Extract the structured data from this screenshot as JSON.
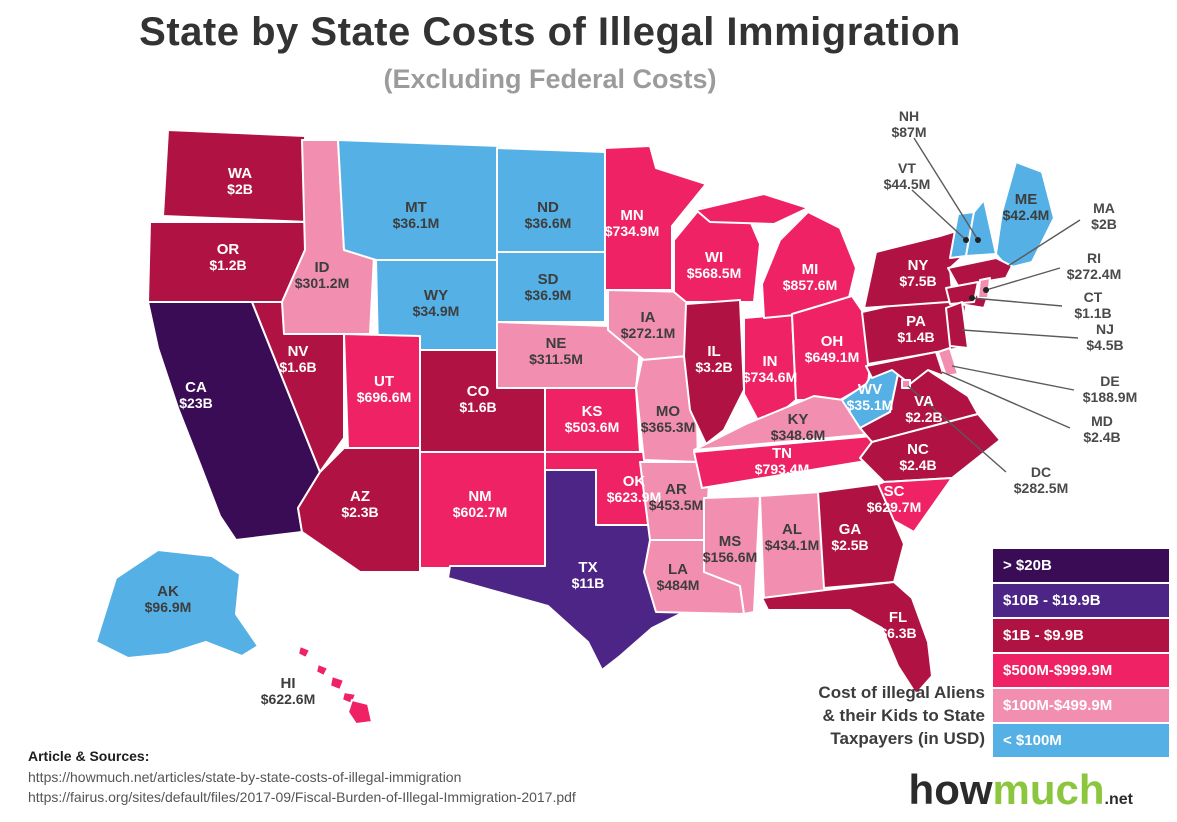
{
  "title": "State by State Costs of Illegal Immigration",
  "subtitle": "(Excluding Federal Costs)",
  "caption_lines": [
    "Cost of illegal Aliens",
    "& their Kids to State",
    "Taxpayers (in USD)"
  ],
  "legend": [
    {
      "label": "> $20B",
      "color": "#3a0c55"
    },
    {
      "label": "$10B - $19.9B",
      "color": "#4c2586"
    },
    {
      "label": "$1B - $9.9B",
      "color": "#b01243"
    },
    {
      "label": "$500M-$999.9M",
      "color": "#ee2264"
    },
    {
      "label": "$100M-$499.9M",
      "color": "#f28fb1"
    },
    {
      "label": "< $100M",
      "color": "#54b0e5"
    }
  ],
  "sources": {
    "heading": "Article & Sources:",
    "urls": [
      "https://howmuch.net/articles/state-by-state-costs-of-illegal-immigration",
      "https://fairus.org/sites/default/files/2017-09/Fiscal-Burden-of-Illegal-Immigration-2017.pdf"
    ]
  },
  "logo": {
    "how": "how",
    "much": "much",
    "net": ".net"
  },
  "chart_data": {
    "type": "choropleth",
    "title": "State by State Costs of Illegal Immigration (Excluding Federal Costs)",
    "unit": "USD",
    "legend_buckets": [
      "> $20B",
      "$10B - $19.9B",
      "$1B - $9.9B",
      "$500M-$999.9M",
      "$100M-$499.9M",
      "< $100M"
    ],
    "states": [
      {
        "abbr": "CA",
        "value": "$23B",
        "bucket": 0
      },
      {
        "abbr": "WA",
        "value": "$2B",
        "bucket": 2
      },
      {
        "abbr": "OR",
        "value": "$1.2B",
        "bucket": 2
      },
      {
        "abbr": "NV",
        "value": "$1.6B",
        "bucket": 2
      },
      {
        "abbr": "ID",
        "value": "$301.2M",
        "bucket": 4
      },
      {
        "abbr": "MT",
        "value": "$36.1M",
        "bucket": 5
      },
      {
        "abbr": "WY",
        "value": "$34.9M",
        "bucket": 5
      },
      {
        "abbr": "UT",
        "value": "$696.6M",
        "bucket": 3
      },
      {
        "abbr": "CO",
        "value": "$1.6B",
        "bucket": 2
      },
      {
        "abbr": "AZ",
        "value": "$2.3B",
        "bucket": 2
      },
      {
        "abbr": "NM",
        "value": "$602.7M",
        "bucket": 3
      },
      {
        "abbr": "ND",
        "value": "$36.6M",
        "bucket": 5
      },
      {
        "abbr": "SD",
        "value": "$36.9M",
        "bucket": 5
      },
      {
        "abbr": "NE",
        "value": "$311.5M",
        "bucket": 4
      },
      {
        "abbr": "KS",
        "value": "$503.6M",
        "bucket": 3
      },
      {
        "abbr": "OK",
        "value": "$623.9M",
        "bucket": 3
      },
      {
        "abbr": "TX",
        "value": "$11B",
        "bucket": 1
      },
      {
        "abbr": "MN",
        "value": "$734.9M",
        "bucket": 3
      },
      {
        "abbr": "IA",
        "value": "$272.1M",
        "bucket": 4
      },
      {
        "abbr": "MO",
        "value": "$365.3M",
        "bucket": 4
      },
      {
        "abbr": "AR",
        "value": "$453.5M",
        "bucket": 4
      },
      {
        "abbr": "LA",
        "value": "$484M",
        "bucket": 4
      },
      {
        "abbr": "MS",
        "value": "$156.6M",
        "bucket": 4
      },
      {
        "abbr": "AL",
        "value": "$434.1M",
        "bucket": 4
      },
      {
        "abbr": "WI",
        "value": "$568.5M",
        "bucket": 3
      },
      {
        "abbr": "IL",
        "value": "$3.2B",
        "bucket": 2
      },
      {
        "abbr": "IN",
        "value": "$734.6M",
        "bucket": 3
      },
      {
        "abbr": "MI",
        "value": "$857.6M",
        "bucket": 3
      },
      {
        "abbr": "OH",
        "value": "$649.1M",
        "bucket": 3
      },
      {
        "abbr": "KY",
        "value": "$348.6M",
        "bucket": 4
      },
      {
        "abbr": "TN",
        "value": "$793.4M",
        "bucket": 3
      },
      {
        "abbr": "WV",
        "value": "$35.1M",
        "bucket": 5
      },
      {
        "abbr": "VA",
        "value": "$2.2B",
        "bucket": 2
      },
      {
        "abbr": "NC",
        "value": "$2.4B",
        "bucket": 2
      },
      {
        "abbr": "SC",
        "value": "$629.7M",
        "bucket": 3
      },
      {
        "abbr": "GA",
        "value": "$2.5B",
        "bucket": 2
      },
      {
        "abbr": "FL",
        "value": "$6.3B",
        "bucket": 2
      },
      {
        "abbr": "PA",
        "value": "$1.4B",
        "bucket": 2
      },
      {
        "abbr": "NY",
        "value": "$7.5B",
        "bucket": 2
      },
      {
        "abbr": "VT",
        "value": "$44.5M",
        "bucket": 5
      },
      {
        "abbr": "NH",
        "value": "$87M",
        "bucket": 5
      },
      {
        "abbr": "ME",
        "value": "$42.4M",
        "bucket": 5
      },
      {
        "abbr": "MA",
        "value": "$2B",
        "bucket": 2
      },
      {
        "abbr": "RI",
        "value": "$272.4M",
        "bucket": 4
      },
      {
        "abbr": "CT",
        "value": "$1.1B",
        "bucket": 2
      },
      {
        "abbr": "NJ",
        "value": "$4.5B",
        "bucket": 2
      },
      {
        "abbr": "DE",
        "value": "$188.9M",
        "bucket": 4
      },
      {
        "abbr": "MD",
        "value": "$2.4B",
        "bucket": 2
      },
      {
        "abbr": "DC",
        "value": "$282.5M",
        "bucket": 4
      },
      {
        "abbr": "AK",
        "value": "$96.9M",
        "bucket": 5
      },
      {
        "abbr": "HI",
        "value": "$622.6M",
        "bucket": 3
      }
    ]
  }
}
